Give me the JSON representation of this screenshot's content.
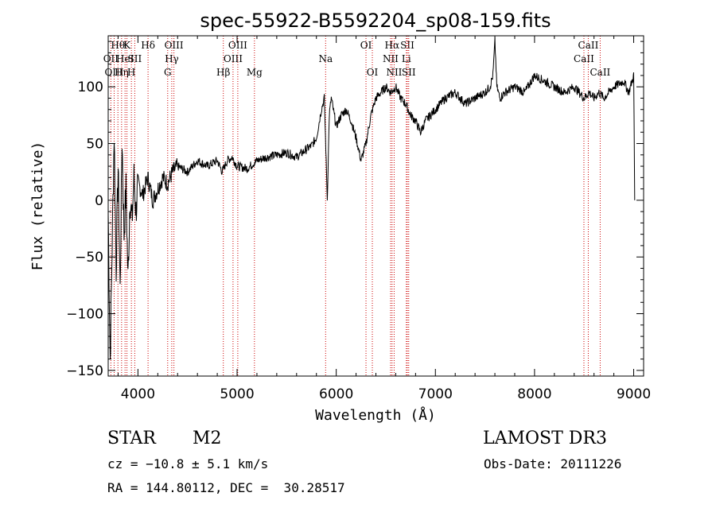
{
  "chart_data": {
    "type": "line",
    "title": "spec-55922-B5592204_sp08-159.fits",
    "xlabel": "Wavelength (Å)",
    "ylabel": "Flux (relative)",
    "xlim": [
      3700,
      9100
    ],
    "ylim": [
      -155,
      145
    ],
    "x_ticks": [
      4000,
      5000,
      6000,
      7000,
      8000,
      9000
    ],
    "x_tick_labels": [
      "4000",
      "5000",
      "6000",
      "7000",
      "8000",
      "9000"
    ],
    "y_ticks": [
      -150,
      -100,
      -50,
      0,
      50,
      100
    ],
    "y_tick_labels": [
      "−150",
      "−100",
      "−50",
      "0",
      "50",
      "100"
    ],
    "series": [
      {
        "name": "spectrum",
        "x": [
          3700,
          3720,
          3740,
          3760,
          3780,
          3800,
          3820,
          3840,
          3860,
          3880,
          3900,
          3920,
          3940,
          3960,
          3980,
          4000,
          4050,
          4100,
          4150,
          4200,
          4250,
          4300,
          4350,
          4400,
          4500,
          4600,
          4700,
          4800,
          4850,
          4900,
          4950,
          5000,
          5100,
          5200,
          5300,
          5400,
          5500,
          5600,
          5700,
          5750,
          5800,
          5850,
          5880,
          5895,
          5910,
          5930,
          5950,
          6000,
          6050,
          6100,
          6150,
          6200,
          6250,
          6300,
          6350,
          6400,
          6450,
          6500,
          6550,
          6600,
          6650,
          6700,
          6750,
          6800,
          6850,
          6900,
          7000,
          7100,
          7200,
          7300,
          7400,
          7500,
          7550,
          7580,
          7600,
          7620,
          7650,
          7700,
          7800,
          7900,
          8000,
          8100,
          8200,
          8300,
          8400,
          8500,
          8550,
          8600,
          8650,
          8700,
          8800,
          8900,
          8950,
          9000,
          9010
        ],
        "values": [
          -10,
          -140,
          -40,
          60,
          -60,
          30,
          -80,
          55,
          -30,
          10,
          -70,
          5,
          -20,
          20,
          -10,
          15,
          5,
          20,
          0,
          10,
          20,
          15,
          25,
          30,
          25,
          35,
          30,
          35,
          25,
          35,
          38,
          30,
          28,
          35,
          38,
          40,
          42,
          38,
          45,
          48,
          55,
          80,
          90,
          45,
          0,
          75,
          90,
          65,
          75,
          80,
          70,
          55,
          35,
          50,
          75,
          90,
          95,
          100,
          95,
          100,
          90,
          85,
          75,
          70,
          60,
          70,
          80,
          90,
          95,
          85,
          90,
          95,
          100,
          110,
          140,
          100,
          90,
          95,
          100,
          95,
          110,
          105,
          100,
          95,
          100,
          90,
          95,
          90,
          95,
          90,
          100,
          105,
          95,
          110,
          0
        ]
      }
    ],
    "line_markers": [
      {
        "wl": 3727,
        "label": "OII",
        "row": 1
      },
      {
        "wl": 3760,
        "label": "OIII",
        "row": 2
      },
      {
        "wl": 3798,
        "label": "Hθ",
        "row": 0
      },
      {
        "wl": 3835,
        "label": "Hη",
        "row": 2
      },
      {
        "wl": 3870,
        "label": "HeI",
        "row": 1
      },
      {
        "wl": 3889,
        "label": "K",
        "row": 0
      },
      {
        "wl": 3934,
        "label": "H",
        "row": 2
      },
      {
        "wl": 3968,
        "label": "SII",
        "row": 1
      },
      {
        "wl": 4102,
        "label": "Hδ",
        "row": 0
      },
      {
        "wl": 4300,
        "label": "G",
        "row": 2
      },
      {
        "wl": 4341,
        "label": "Hγ",
        "row": 1
      },
      {
        "wl": 4363,
        "label": "OIII",
        "row": 0
      },
      {
        "wl": 4861,
        "label": "Hβ",
        "row": 2
      },
      {
        "wl": 4959,
        "label": "OIII",
        "row": 1
      },
      {
        "wl": 5007,
        "label": "OIII",
        "row": 0
      },
      {
        "wl": 5175,
        "label": "Mg",
        "row": 2
      },
      {
        "wl": 5893,
        "label": "Na",
        "row": 1
      },
      {
        "wl": 6300,
        "label": "OI",
        "row": 0
      },
      {
        "wl": 6364,
        "label": "OI",
        "row": 2
      },
      {
        "wl": 6548,
        "label": "NII",
        "row": 1
      },
      {
        "wl": 6563,
        "label": "Hα",
        "row": 0
      },
      {
        "wl": 6584,
        "label": "NII",
        "row": 2
      },
      {
        "wl": 6707,
        "label": "Li",
        "row": 1
      },
      {
        "wl": 6717,
        "label": "SII",
        "row": 0
      },
      {
        "wl": 6731,
        "label": "SII",
        "row": 2
      },
      {
        "wl": 8498,
        "label": "CaII",
        "row": 1
      },
      {
        "wl": 8542,
        "label": "CaII",
        "row": 0
      },
      {
        "wl": 8662,
        "label": "CaII",
        "row": 2
      }
    ]
  },
  "info": {
    "class": "STAR",
    "subclass": "M2",
    "survey": "LAMOST DR3",
    "cz": "cz = −10.8 ± 5.1 km/s",
    "obs_date": "Obs-Date: 20111226",
    "radec": "RA = 144.80112, DEC =  30.28517"
  }
}
